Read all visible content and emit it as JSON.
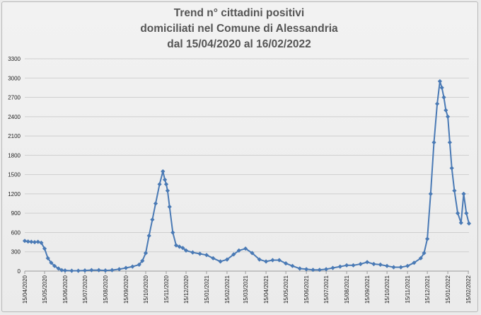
{
  "chart_data": {
    "type": "line",
    "title": [
      "Trend n° cittadini positivi",
      "domiciliati nel Comune di Alessandria",
      "dal 15/04/2020 al 16/02/2022"
    ],
    "xlabel": "",
    "ylabel": "",
    "ylim": [
      0,
      3300
    ],
    "yticks": [
      0,
      300,
      600,
      900,
      1200,
      1500,
      1800,
      2100,
      2400,
      2700,
      3000,
      3300
    ],
    "x_tick_labels": [
      "15/04/2020",
      "15/05/2020",
      "15/06/2020",
      "15/07/2020",
      "15/08/2020",
      "15/09/2020",
      "15/10/2020",
      "15/11/2020",
      "15/12/2020",
      "15/01/2021",
      "15/02/2021",
      "15/03/2021",
      "15/04/2021",
      "15/05/2021",
      "15/06/2021",
      "15/07/2021",
      "15/08/2021",
      "15/09/2021",
      "15/10/2021",
      "15/11/2021",
      "15/12/2021",
      "15/01/2022",
      "15/02/2022"
    ],
    "grid": "horizontal",
    "color": "#4a7ab5",
    "series": [
      {
        "x": [
          "15/04/2020",
          "20/04/2020",
          "25/04/2020",
          "30/04/2020",
          "05/05/2020",
          "10/05/2020",
          "15/05/2020",
          "20/05/2020",
          "25/05/2020",
          "30/05/2020",
          "05/06/2020",
          "10/06/2020",
          "15/06/2020",
          "25/06/2020",
          "05/07/2020",
          "15/07/2020",
          "25/07/2020",
          "05/08/2020",
          "15/08/2020",
          "25/08/2020",
          "05/09/2020",
          "15/09/2020",
          "25/09/2020",
          "05/10/2020",
          "10/10/2020",
          "15/10/2020",
          "20/10/2020",
          "25/10/2020",
          "30/10/2020",
          "05/11/2020",
          "10/11/2020",
          "13/11/2020",
          "15/11/2020",
          "17/11/2020",
          "20/11/2020",
          "25/11/2020",
          "30/11/2020",
          "05/12/2020",
          "10/12/2020",
          "15/12/2020",
          "25/12/2020",
          "05/01/2021",
          "15/01/2021",
          "25/01/2021",
          "05/02/2021",
          "15/02/2021",
          "25/02/2021",
          "05/03/2021",
          "15/03/2021",
          "25/03/2021",
          "05/04/2021",
          "15/04/2021",
          "25/04/2021",
          "05/05/2021",
          "15/05/2021",
          "25/05/2021",
          "05/06/2021",
          "15/06/2021",
          "25/06/2021",
          "05/07/2021",
          "15/07/2021",
          "25/07/2021",
          "05/08/2021",
          "15/08/2021",
          "25/08/2021",
          "05/09/2021",
          "15/09/2021",
          "25/09/2021",
          "05/10/2021",
          "15/10/2021",
          "25/10/2021",
          "05/11/2021",
          "15/11/2021",
          "25/11/2021",
          "05/12/2021",
          "10/12/2021",
          "15/12/2021",
          "20/12/2021",
          "25/12/2021",
          "30/12/2021",
          "03/01/2022",
          "06/01/2022",
          "09/01/2022",
          "12/01/2022",
          "15/01/2022",
          "18/01/2022",
          "21/01/2022",
          "25/01/2022",
          "30/01/2022",
          "04/02/2022",
          "08/02/2022",
          "12/02/2022",
          "16/02/2022"
        ],
        "values": [
          470,
          460,
          455,
          450,
          455,
          440,
          350,
          200,
          130,
          80,
          40,
          15,
          10,
          5,
          5,
          10,
          15,
          15,
          10,
          15,
          30,
          50,
          70,
          100,
          160,
          280,
          550,
          800,
          1050,
          1350,
          1550,
          1420,
          1350,
          1250,
          1000,
          600,
          400,
          380,
          360,
          320,
          290,
          270,
          250,
          200,
          150,
          180,
          260,
          320,
          350,
          280,
          180,
          150,
          170,
          170,
          120,
          80,
          40,
          30,
          20,
          20,
          30,
          50,
          70,
          90,
          90,
          110,
          140,
          110,
          100,
          80,
          60,
          60,
          80,
          130,
          200,
          280,
          500,
          1200,
          2000,
          2600,
          2950,
          2850,
          2700,
          2500,
          2400,
          2000,
          1600,
          1250,
          900,
          750,
          1200,
          900,
          740
        ]
      }
    ]
  }
}
